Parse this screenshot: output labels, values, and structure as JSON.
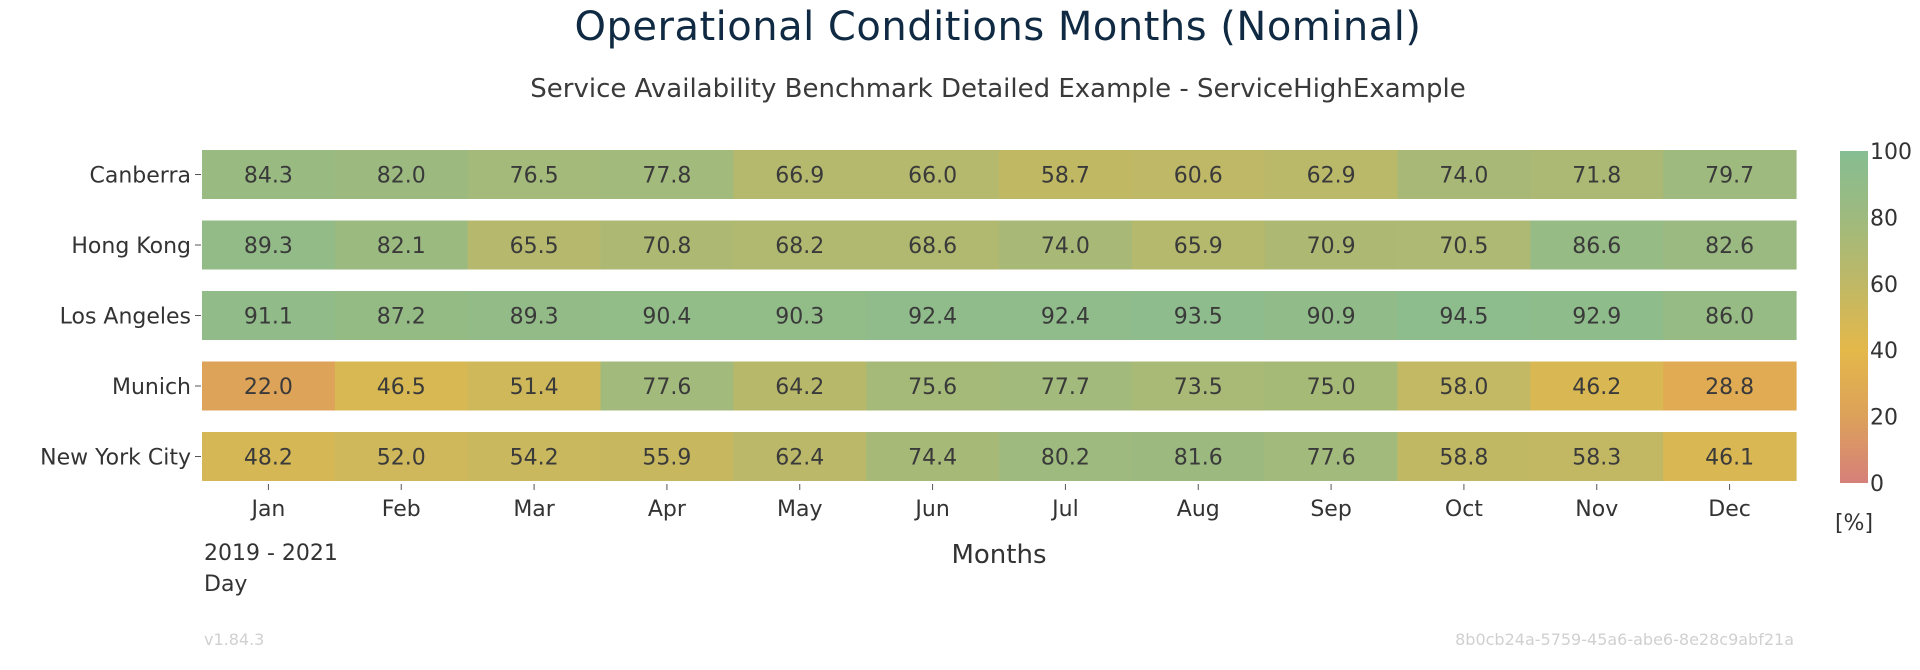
{
  "chart_data": {
    "type": "heatmap",
    "title": "Operational Conditions Months (Nominal)",
    "subtitle": "Service Availability Benchmark Detailed Example - ServiceHighExample",
    "xlabel": "Months",
    "rows": [
      "Canberra",
      "Hong Kong",
      "Los Angeles",
      "Munich",
      "New York City"
    ],
    "columns": [
      "Jan",
      "Feb",
      "Mar",
      "Apr",
      "May",
      "Jun",
      "Jul",
      "Aug",
      "Sep",
      "Oct",
      "Nov",
      "Dec"
    ],
    "values": [
      [
        84.3,
        82.0,
        76.5,
        77.8,
        66.9,
        66.0,
        58.7,
        60.6,
        62.9,
        74.0,
        71.8,
        79.7
      ],
      [
        89.3,
        82.1,
        65.5,
        70.8,
        68.2,
        68.6,
        74.0,
        65.9,
        70.9,
        70.5,
        86.6,
        82.6
      ],
      [
        91.1,
        87.2,
        89.3,
        90.4,
        90.3,
        92.4,
        92.4,
        93.5,
        90.9,
        94.5,
        92.9,
        86.0
      ],
      [
        22.0,
        46.5,
        51.4,
        77.6,
        64.2,
        75.6,
        77.7,
        73.5,
        75.0,
        58.0,
        46.2,
        28.8
      ],
      [
        48.2,
        52.0,
        54.2,
        55.9,
        62.4,
        74.4,
        80.2,
        81.6,
        77.6,
        58.8,
        58.3,
        46.1
      ]
    ],
    "colorbar": {
      "range": [
        0,
        100
      ],
      "ticks": [
        "0",
        "20",
        "40",
        "60",
        "80",
        "100"
      ],
      "unit": "[%]",
      "colors": [
        "#d6807a",
        "#dca15a",
        "#e4b84a",
        "#bfb866",
        "#9eba7e",
        "#86bd92"
      ]
    },
    "footer": {
      "period": "2019 - 2021",
      "resolution": "Day",
      "version": "v1.84.3",
      "id": "8b0cb24a-5759-45a6-abe6-8e28c9abf21a"
    }
  }
}
